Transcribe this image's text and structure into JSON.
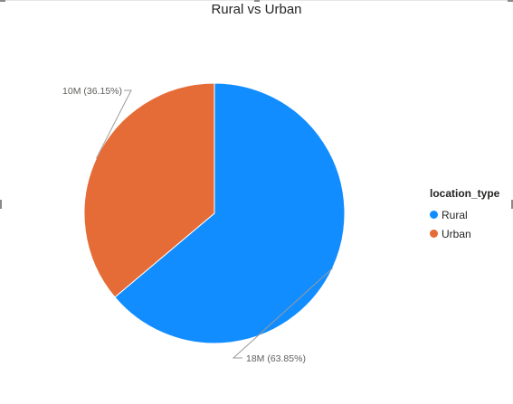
{
  "chart_data": {
    "type": "pie",
    "title": "Rural vs Urban",
    "legend": {
      "title": "location_type",
      "placement": "right"
    },
    "slices": [
      {
        "label": "Rural",
        "value": 18,
        "percent": 63.85,
        "data_label": "18M (63.85%)",
        "color": "#118dff"
      },
      {
        "label": "Urban",
        "value": 10,
        "percent": 36.15,
        "data_label": "10M (36.15%)",
        "color": "#e66c37"
      }
    ]
  }
}
